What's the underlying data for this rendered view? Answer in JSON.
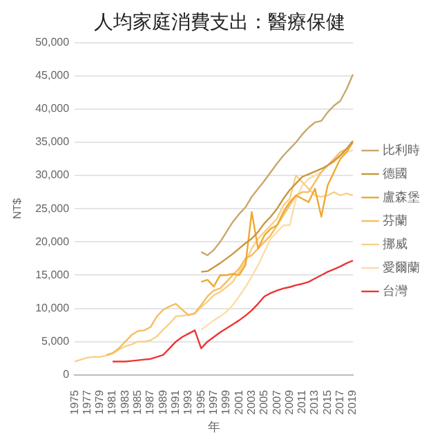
{
  "chart_data": {
    "type": "line",
    "title": "人均家庭消費支出：醫療保健",
    "xlabel": "年",
    "ylabel": "NT$",
    "categories": [
      "1975",
      null,
      "1977",
      null,
      "1979",
      null,
      "1981",
      null,
      "1983",
      null,
      "1985",
      null,
      "1987",
      null,
      "1989",
      null,
      "1991",
      null,
      "1993",
      null,
      "1995",
      null,
      "1997",
      null,
      "1999",
      null,
      "2001",
      null,
      "2003",
      null,
      "2005",
      null,
      "2007",
      null,
      "2009",
      null,
      "2011",
      null,
      "2013",
      null,
      "2015",
      null,
      "2017",
      null,
      "2019"
    ],
    "ylim": [
      0,
      50000
    ],
    "yticks": [
      {
        "value": 0,
        "label": "0"
      },
      {
        "value": 5000,
        "label": "5,000"
      },
      {
        "value": 10000,
        "label": "10,000"
      },
      {
        "value": 15000,
        "label": "15,000"
      },
      {
        "value": 20000,
        "label": "20,000"
      },
      {
        "value": 25000,
        "label": "25,000"
      },
      {
        "value": 30000,
        "label": "30,000"
      },
      {
        "value": 35000,
        "label": "35,000"
      },
      {
        "value": 40000,
        "label": "40,000"
      },
      {
        "value": 45000,
        "label": "45,000"
      },
      {
        "value": 50000,
        "label": "50,000"
      }
    ],
    "grid": "y",
    "legend": "right",
    "marker": "none",
    "line_style": "solid",
    "series": [
      {
        "name": "比利時",
        "color": "#c9a66b",
        "values": [
          null,
          null,
          null,
          null,
          null,
          null,
          null,
          null,
          null,
          null,
          null,
          null,
          null,
          null,
          null,
          null,
          null,
          null,
          null,
          null,
          18500,
          18000,
          18800,
          20000,
          21500,
          23000,
          24200,
          25200,
          26800,
          28000,
          29200,
          30500,
          31800,
          33000,
          34000,
          35000,
          36200,
          37200,
          38000,
          38200,
          39500,
          40500,
          41200,
          43000,
          45200
        ]
      },
      {
        "name": "德國",
        "color": "#c8963e",
        "values": [
          null,
          null,
          null,
          null,
          null,
          null,
          null,
          null,
          null,
          null,
          null,
          null,
          null,
          null,
          null,
          null,
          null,
          null,
          null,
          null,
          15500,
          15600,
          16200,
          16800,
          17500,
          18200,
          19000,
          19800,
          20500,
          21500,
          22800,
          23800,
          25000,
          26500,
          27800,
          28800,
          29800,
          30200,
          30600,
          31000,
          31500,
          32200,
          33000,
          34000,
          35200
        ]
      },
      {
        "name": "盧森堡",
        "color": "#f0a830",
        "values": [
          null,
          null,
          null,
          null,
          null,
          null,
          null,
          null,
          null,
          null,
          null,
          null,
          null,
          null,
          null,
          null,
          null,
          null,
          null,
          null,
          14000,
          14300,
          13300,
          15000,
          15000,
          15200,
          15000,
          16500,
          24500,
          19000,
          21000,
          22000,
          22500,
          24500,
          26000,
          27000,
          26500,
          26000,
          28000,
          23800,
          28500,
          30500,
          32500,
          33500,
          35000
        ]
      },
      {
        "name": "芬蘭",
        "color": "#f5bd5e",
        "values": [
          null,
          null,
          null,
          null,
          null,
          3000,
          3300,
          4000,
          5000,
          6000,
          6600,
          6700,
          7200,
          8800,
          9800,
          10300,
          10700,
          9800,
          9000,
          9300,
          10500,
          11800,
          12700,
          13000,
          14000,
          15000,
          16000,
          17500,
          18000,
          19000,
          20000,
          21000,
          22500,
          24000,
          25500,
          27000,
          27500,
          27500,
          29000,
          30500,
          31500,
          32500,
          33500,
          34000,
          35000
        ]
      },
      {
        "name": "挪威",
        "color": "#f8cf88",
        "values": [
          2000,
          2300,
          2600,
          2700,
          2700,
          2900,
          3200,
          3800,
          4300,
          4600,
          5000,
          5000,
          5200,
          5800,
          6800,
          7700,
          8800,
          8900,
          9000,
          9200,
          10200,
          11000,
          12000,
          12500,
          13200,
          14000,
          15500,
          17000,
          19000,
          20500,
          21500,
          22500,
          23500,
          25500,
          26500,
          30000,
          29000,
          28000,
          27000,
          26800,
          27000,
          27500,
          27000,
          27300,
          27000
        ]
      },
      {
        "name": "愛爾蘭",
        "color": "#fcdca8",
        "values": [
          null,
          null,
          null,
          null,
          null,
          null,
          null,
          null,
          null,
          null,
          null,
          null,
          null,
          null,
          null,
          null,
          null,
          null,
          null,
          null,
          6800,
          7500,
          8200,
          8800,
          9500,
          10500,
          11800,
          13200,
          14800,
          16500,
          18500,
          20500,
          21500,
          22500,
          22500,
          26500,
          28500,
          29500,
          30000,
          30500,
          31500,
          32000,
          33000,
          33500,
          33800
        ]
      },
      {
        "name": "台灣",
        "color": "#ee3333",
        "values": [
          null,
          null,
          null,
          null,
          null,
          null,
          2000,
          2000,
          2000,
          2100,
          2200,
          2300,
          2400,
          2700,
          3000,
          4000,
          5000,
          5700,
          6200,
          6700,
          4000,
          5000,
          5700,
          6400,
          7000,
          7600,
          8200,
          8900,
          9700,
          10700,
          11800,
          12300,
          12700,
          13000,
          13200,
          13500,
          13700,
          14000,
          14500,
          15000,
          15500,
          15900,
          16300,
          16800,
          17200
        ]
      }
    ]
  }
}
